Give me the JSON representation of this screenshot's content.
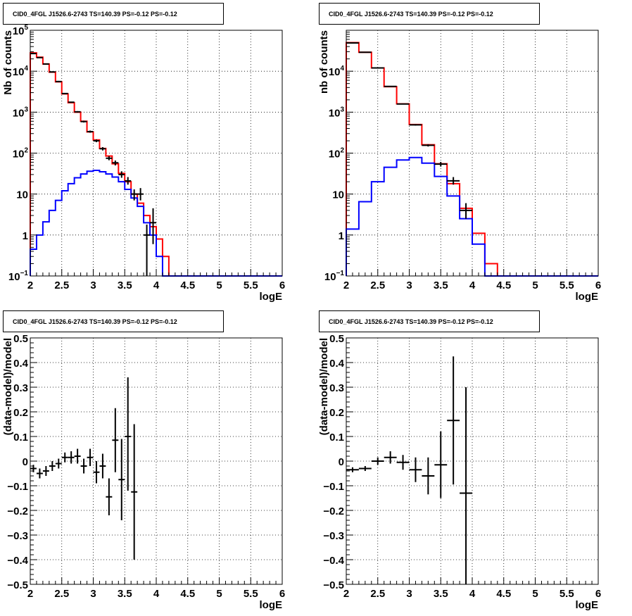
{
  "chart_data": [
    {
      "type": "step",
      "title": "CID0_4FGL J1526.6-2743 TS=140.39 PS=-0.12 PS=-0.12",
      "xlabel": "logE",
      "ylabel": "Nb of counts",
      "xlim": [
        2,
        6
      ],
      "ylim": [
        0.1,
        100000
      ],
      "log_y": true,
      "grid": true,
      "x_ticks": [
        "2",
        "2.5",
        "3",
        "3.5",
        "4",
        "4.5",
        "5",
        "5.5",
        "6"
      ],
      "y_ticks": [
        "10^-1",
        "1",
        "10",
        "10^2",
        "10^3",
        "10^4",
        "10^5"
      ],
      "bin_edges": [
        2.0,
        2.1,
        2.2,
        2.3,
        2.4,
        2.5,
        2.6,
        2.7,
        2.8,
        2.9,
        3.0,
        3.1,
        3.2,
        3.3,
        3.4,
        3.5,
        3.6,
        3.7,
        3.8,
        3.9,
        4.0,
        4.1,
        4.2,
        4.3,
        4.4,
        4.5,
        4.6,
        4.7,
        4.8,
        4.9,
        5.0,
        5.1,
        5.2,
        5.3,
        5.4,
        5.5,
        5.6,
        5.7,
        5.8,
        5.9,
        6.0
      ],
      "series": [
        {
          "color": "#ff0000",
          "values": [
            28000,
            22000,
            15000,
            9500,
            5500,
            2800,
            1700,
            1000,
            600,
            330,
            210,
            130,
            85,
            55,
            32,
            20,
            10,
            6,
            3,
            1.6,
            0.8,
            0.3,
            0.1,
            0.1,
            0.1,
            0.1,
            0.1,
            0.1,
            0.1,
            0.1,
            0.1,
            0.1,
            0.1,
            0.1,
            0.1,
            0.1,
            0.1,
            0.1,
            0.1,
            0.1
          ]
        },
        {
          "color": "#0000ff",
          "values": [
            0.45,
            1.0,
            2.1,
            4.0,
            7.0,
            12,
            18,
            25,
            31,
            36,
            38,
            35,
            31,
            26,
            20,
            13,
            8,
            5,
            2,
            1,
            0.3,
            0.1,
            0.1,
            0.1,
            0.1,
            0.1,
            0.1,
            0.1,
            0.1,
            0.1,
            0.1,
            0.1,
            0.1,
            0.1,
            0.1,
            0.1,
            0.1,
            0.1,
            0.1,
            0.1
          ]
        }
      ],
      "points": [
        {
          "x": 2.05,
          "y": 27000,
          "lo": 26500,
          "hi": 27500
        },
        {
          "x": 2.15,
          "y": 21500,
          "lo": 21000,
          "hi": 22000
        },
        {
          "x": 2.25,
          "y": 15000,
          "lo": 14600,
          "hi": 15400
        },
        {
          "x": 2.35,
          "y": 9600,
          "lo": 9300,
          "hi": 9900
        },
        {
          "x": 2.45,
          "y": 5600,
          "lo": 5400,
          "hi": 5800
        },
        {
          "x": 2.55,
          "y": 2850,
          "lo": 2750,
          "hi": 2950
        },
        {
          "x": 2.65,
          "y": 1750,
          "lo": 1700,
          "hi": 1800
        },
        {
          "x": 2.75,
          "y": 1020,
          "lo": 980,
          "hi": 1060
        },
        {
          "x": 2.85,
          "y": 590,
          "lo": 560,
          "hi": 620
        },
        {
          "x": 2.95,
          "y": 335,
          "lo": 315,
          "hi": 355
        },
        {
          "x": 3.05,
          "y": 200,
          "lo": 185,
          "hi": 215
        },
        {
          "x": 3.15,
          "y": 128,
          "lo": 116,
          "hi": 140
        },
        {
          "x": 3.25,
          "y": 75,
          "lo": 67,
          "hi": 84
        },
        {
          "x": 3.35,
          "y": 58,
          "lo": 50,
          "hi": 66
        },
        {
          "x": 3.45,
          "y": 30,
          "lo": 25,
          "hi": 36
        },
        {
          "x": 3.55,
          "y": 21,
          "lo": 17,
          "hi": 26
        },
        {
          "x": 3.65,
          "y": 10,
          "lo": 7,
          "hi": 13
        },
        {
          "x": 3.75,
          "y": 10,
          "lo": 7,
          "hi": 14
        },
        {
          "x": 3.85,
          "y": 1,
          "lo": 0.1,
          "hi": 1.8
        },
        {
          "x": 3.95,
          "y": 2,
          "lo": 0.6,
          "hi": 4.5
        }
      ]
    },
    {
      "type": "step",
      "title": "CID0_4FGL J1526.6-2743 TS=140.39 PS=-0.12 PS=-0.12",
      "xlabel": "logE",
      "ylabel": "nb of counts",
      "xlim": [
        2,
        6
      ],
      "ylim": [
        0.1,
        100000
      ],
      "log_y": true,
      "grid": true,
      "x_ticks": [
        "2",
        "2.5",
        "3",
        "3.5",
        "4",
        "4.5",
        "5",
        "5.5",
        "6"
      ],
      "y_ticks": [
        "10^-1",
        "1",
        "10",
        "10^2",
        "10^3",
        "10^4"
      ],
      "bin_edges": [
        2.0,
        2.2,
        2.4,
        2.6,
        2.8,
        3.0,
        3.2,
        3.4,
        3.6,
        3.8,
        4.0,
        4.2,
        4.4,
        4.6,
        4.8,
        5.0,
        5.2,
        5.4,
        5.6,
        5.8,
        6.0
      ],
      "series": [
        {
          "color": "#ff0000",
          "values": [
            50000,
            29000,
            12000,
            4200,
            1600,
            500,
            160,
            55,
            18,
            4.5,
            1.1,
            0.2,
            0.1,
            0.1,
            0.1,
            0.1,
            0.1,
            0.1,
            0.1,
            0.1
          ]
        },
        {
          "color": "#0000ff",
          "values": [
            1.4,
            6.5,
            20,
            45,
            68,
            78,
            57,
            27,
            9,
            2.5,
            0.6,
            0.1,
            0.1,
            0.1,
            0.1,
            0.1,
            0.1,
            0.1,
            0.1,
            0.1
          ]
        }
      ],
      "points": [
        {
          "x": 2.1,
          "y": 49000,
          "lo": 48500,
          "hi": 49500
        },
        {
          "x": 2.3,
          "y": 29000,
          "lo": 28600,
          "hi": 29400
        },
        {
          "x": 2.5,
          "y": 12000,
          "lo": 11800,
          "hi": 12200
        },
        {
          "x": 2.7,
          "y": 4250,
          "lo": 4150,
          "hi": 4350
        },
        {
          "x": 2.9,
          "y": 1580,
          "lo": 1540,
          "hi": 1620
        },
        {
          "x": 3.1,
          "y": 490,
          "lo": 470,
          "hi": 510
        },
        {
          "x": 3.3,
          "y": 155,
          "lo": 145,
          "hi": 165
        },
        {
          "x": 3.5,
          "y": 54,
          "lo": 47,
          "hi": 61
        },
        {
          "x": 3.7,
          "y": 21,
          "lo": 17,
          "hi": 26
        },
        {
          "x": 3.9,
          "y": 4,
          "lo": 2.5,
          "hi": 6
        }
      ]
    },
    {
      "type": "scatter",
      "title": "CID0_4FGL J1526.6-2743 TS=140.39 PS=-0.12 PS=-0.12",
      "xlabel": "logE",
      "ylabel": "(data-model)/model",
      "xlim": [
        2,
        6
      ],
      "ylim": [
        -0.5,
        0.5
      ],
      "grid": true,
      "x_ticks": [
        "2",
        "2.5",
        "3",
        "3.5",
        "4",
        "4.5",
        "5",
        "5.5",
        "6"
      ],
      "y_ticks": [
        "-0.5",
        "-0.4",
        "-0.3",
        "-0.2",
        "-0.1",
        "0",
        "0.1",
        "0.2",
        "0.3",
        "0.4",
        "0.5"
      ],
      "points": [
        {
          "x": 2.05,
          "y": -0.03,
          "lo": -0.045,
          "hi": -0.015,
          "xerr": 0.05
        },
        {
          "x": 2.15,
          "y": -0.05,
          "lo": -0.07,
          "hi": -0.03,
          "xerr": 0.05
        },
        {
          "x": 2.25,
          "y": -0.04,
          "lo": -0.06,
          "hi": -0.02,
          "xerr": 0.05
        },
        {
          "x": 2.35,
          "y": -0.02,
          "lo": -0.04,
          "hi": 0.0,
          "xerr": 0.05
        },
        {
          "x": 2.45,
          "y": -0.01,
          "lo": -0.03,
          "hi": 0.01,
          "xerr": 0.05
        },
        {
          "x": 2.55,
          "y": 0.015,
          "lo": -0.005,
          "hi": 0.035,
          "xerr": 0.05
        },
        {
          "x": 2.65,
          "y": 0.015,
          "lo": -0.01,
          "hi": 0.04,
          "xerr": 0.05
        },
        {
          "x": 2.75,
          "y": 0.02,
          "lo": -0.01,
          "hi": 0.05,
          "xerr": 0.05
        },
        {
          "x": 2.85,
          "y": -0.02,
          "lo": -0.05,
          "hi": 0.01,
          "xerr": 0.05
        },
        {
          "x": 2.95,
          "y": 0.015,
          "lo": -0.02,
          "hi": 0.05,
          "xerr": 0.05
        },
        {
          "x": 3.05,
          "y": -0.045,
          "lo": -0.09,
          "hi": 0.0,
          "xerr": 0.05
        },
        {
          "x": 3.15,
          "y": -0.02,
          "lo": -0.07,
          "hi": 0.03,
          "xerr": 0.05
        },
        {
          "x": 3.25,
          "y": -0.145,
          "lo": -0.22,
          "hi": -0.07,
          "xerr": 0.05
        },
        {
          "x": 3.35,
          "y": 0.085,
          "lo": -0.045,
          "hi": 0.215,
          "xerr": 0.05
        },
        {
          "x": 3.45,
          "y": -0.075,
          "lo": -0.24,
          "hi": 0.09,
          "xerr": 0.05
        },
        {
          "x": 3.55,
          "y": 0.1,
          "lo": -0.12,
          "hi": 0.34,
          "xerr": 0.05
        },
        {
          "x": 3.65,
          "y": -0.125,
          "lo": -0.4,
          "hi": 0.15,
          "xerr": 0.05
        }
      ]
    },
    {
      "type": "scatter",
      "title": "CID0_4FGL J1526.6-2743 TS=140.39 PS=-0.12 PS=-0.12",
      "xlabel": "logE",
      "ylabel": "(data-model)/model",
      "xlim": [
        2,
        6
      ],
      "ylim": [
        -0.5,
        0.5
      ],
      "grid": true,
      "x_ticks": [
        "2",
        "2.5",
        "3",
        "3.5",
        "4",
        "4.5",
        "5",
        "5.5",
        "6"
      ],
      "y_ticks": [
        "-0.5",
        "-0.4",
        "-0.3",
        "-0.2",
        "-0.1",
        "0",
        "0.1",
        "0.2",
        "0.3",
        "0.4",
        "0.5"
      ],
      "points": [
        {
          "x": 2.1,
          "y": -0.035,
          "lo": -0.045,
          "hi": -0.025,
          "xerr": 0.1
        },
        {
          "x": 2.3,
          "y": -0.03,
          "lo": -0.04,
          "hi": -0.02,
          "xerr": 0.1
        },
        {
          "x": 2.5,
          "y": 0.0,
          "lo": -0.015,
          "hi": 0.015,
          "xerr": 0.1
        },
        {
          "x": 2.7,
          "y": 0.015,
          "lo": -0.01,
          "hi": 0.04,
          "xerr": 0.1
        },
        {
          "x": 2.9,
          "y": -0.005,
          "lo": -0.035,
          "hi": 0.025,
          "xerr": 0.1
        },
        {
          "x": 3.1,
          "y": -0.035,
          "lo": -0.085,
          "hi": 0.015,
          "xerr": 0.1
        },
        {
          "x": 3.3,
          "y": -0.06,
          "lo": -0.135,
          "hi": 0.015,
          "xerr": 0.1
        },
        {
          "x": 3.5,
          "y": -0.015,
          "lo": -0.15,
          "hi": 0.12,
          "xerr": 0.1
        },
        {
          "x": 3.7,
          "y": 0.165,
          "lo": -0.095,
          "hi": 0.425,
          "xerr": 0.1
        },
        {
          "x": 3.9,
          "y": -0.13,
          "lo": -0.5,
          "hi": 0.3,
          "xerr": 0.1
        }
      ]
    }
  ]
}
